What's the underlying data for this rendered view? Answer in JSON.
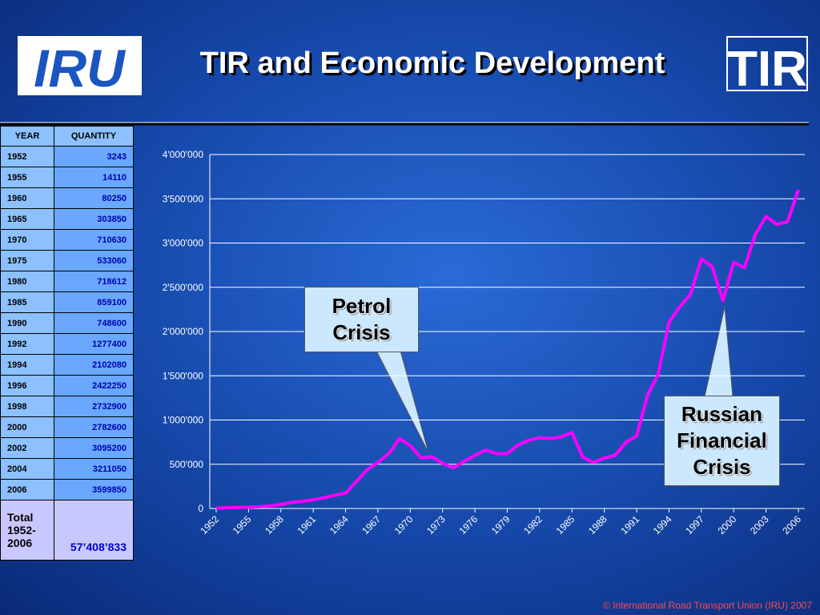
{
  "header": {
    "title": "TIR and Economic Development",
    "logo_left": "IRU",
    "logo_right": "TIR"
  },
  "table": {
    "columns": [
      "YEAR",
      "QUANTITY"
    ],
    "rows": [
      [
        "1952",
        "3243"
      ],
      [
        "1955",
        "14110"
      ],
      [
        "1960",
        "80250"
      ],
      [
        "1965",
        "303850"
      ],
      [
        "1970",
        "710630"
      ],
      [
        "1975",
        "533060"
      ],
      [
        "1980",
        "718612"
      ],
      [
        "1985",
        "859100"
      ],
      [
        "1990",
        "748600"
      ],
      [
        "1992",
        "1277400"
      ],
      [
        "1994",
        "2102080"
      ],
      [
        "1996",
        "2422250"
      ],
      [
        "1998",
        "2732900"
      ],
      [
        "2000",
        "2782600"
      ],
      [
        "2002",
        "3095200"
      ],
      [
        "2004",
        "3211050"
      ],
      [
        "2006",
        "3599850"
      ]
    ],
    "total": [
      "Total 1952-2006",
      "57’408’833"
    ]
  },
  "chart_data": {
    "type": "line",
    "color": "#ff00ff",
    "grid": true,
    "x": [
      1952,
      1953,
      1954,
      1955,
      1956,
      1957,
      1958,
      1959,
      1960,
      1961,
      1962,
      1963,
      1964,
      1965,
      1966,
      1967,
      1968,
      1969,
      1970,
      1971,
      1972,
      1973,
      1974,
      1975,
      1976,
      1977,
      1978,
      1979,
      1980,
      1981,
      1982,
      1983,
      1984,
      1985,
      1986,
      1987,
      1988,
      1989,
      1990,
      1991,
      1992,
      1993,
      1994,
      1995,
      1996,
      1997,
      1998,
      1999,
      2000,
      2001,
      2002,
      2003,
      2004,
      2005,
      2006
    ],
    "values": [
      3243,
      8000,
      12000,
      14110,
      20000,
      30000,
      45000,
      70000,
      80250,
      100000,
      120000,
      150000,
      175000,
      303850,
      440000,
      520000,
      620000,
      790000,
      710630,
      570000,
      585000,
      510000,
      460000,
      533060,
      600000,
      660000,
      620000,
      620000,
      718612,
      770000,
      800000,
      790000,
      810000,
      859100,
      580000,
      520000,
      570000,
      600000,
      748600,
      820000,
      1277400,
      1520000,
      2102080,
      2280000,
      2422250,
      2820000,
      2732900,
      2350000,
      2782600,
      2720000,
      3095200,
      3300000,
      3211050,
      3240000,
      3599850
    ],
    "xlim": [
      1952,
      2006
    ],
    "xticks": [
      1952,
      1955,
      1958,
      1961,
      1964,
      1967,
      1970,
      1973,
      1976,
      1979,
      1982,
      1985,
      1988,
      1991,
      1994,
      1997,
      2000,
      2003,
      2006
    ],
    "ylim": [
      0,
      4000000
    ],
    "yticks": [
      0,
      {
        "value": 500000,
        "label": "500'000"
      },
      {
        "value": 1000000,
        "label": "1'000'000"
      },
      {
        "value": 1500000,
        "label": "1'500'000"
      },
      {
        "value": 2000000,
        "label": "2'000'000"
      },
      {
        "value": 2500000,
        "label": "2'500'000"
      },
      {
        "value": 3000000,
        "label": "3'000'000"
      },
      {
        "value": 3500000,
        "label": "3'500'000"
      },
      {
        "value": 4000000,
        "label": "4'000'000"
      }
    ],
    "annotations": [
      "Petrol Crisis",
      "Russian Financial Crisis"
    ]
  },
  "footer": "© International Road Transport Union (IRU) 2007"
}
